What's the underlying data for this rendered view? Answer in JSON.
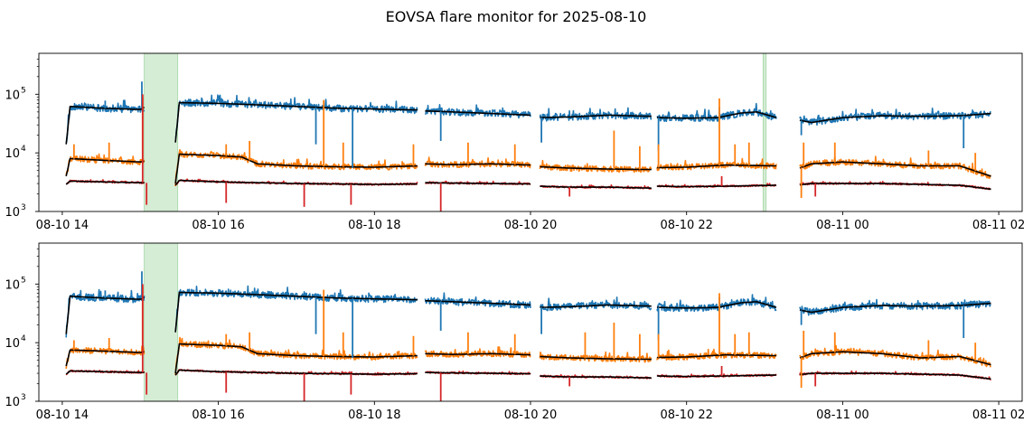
{
  "chart_data": {
    "type": "line",
    "title": "EOVSA flare monitor for 2025-08-10",
    "x_unit": "hours since 2025-08-10 00:00 UT",
    "xlim": [
      13.7,
      26.3
    ],
    "x_ticks": [
      {
        "value": 14,
        "label": "08-10 14"
      },
      {
        "value": 16,
        "label": "08-10 16"
      },
      {
        "value": 18,
        "label": "08-10 18"
      },
      {
        "value": 20,
        "label": "08-10 20"
      },
      {
        "value": 22,
        "label": "08-10 22"
      },
      {
        "value": 24,
        "label": "08-11 00"
      },
      {
        "value": 26,
        "label": "08-11 02"
      }
    ],
    "y_scale": "log",
    "ylim": [
      1000,
      500000
    ],
    "y_ticks": [
      {
        "value": 1000,
        "base": "10",
        "exp": "3"
      },
      {
        "value": 10000,
        "base": "10",
        "exp": "4"
      },
      {
        "value": 100000,
        "base": "10",
        "exp": "5"
      }
    ],
    "segments": [
      [
        14.05,
        15.05
      ],
      [
        15.45,
        18.55
      ],
      [
        18.65,
        20.0
      ],
      [
        20.12,
        21.55
      ],
      [
        21.62,
        23.15
      ],
      [
        23.45,
        25.9
      ]
    ],
    "colors": {
      "blue": "#1f77b4",
      "orange": "#ff7f0e",
      "red": "#d62728",
      "smooth": "#000000",
      "flare": "#2ca02c"
    },
    "panels": [
      {
        "name": "top",
        "flare_spans": [
          [
            15.05,
            15.48
          ],
          [
            22.98,
            23.02
          ]
        ],
        "series": [
          {
            "name": "blue",
            "color": "#1f77b4",
            "x": [
              14.05,
              14.1,
              14.5,
              15.0,
              15.05,
              15.45,
              15.5,
              16.0,
              16.5,
              17.0,
              17.5,
              18.0,
              18.55,
              18.65,
              19.0,
              19.5,
              20.0,
              20.12,
              20.5,
              21.0,
              21.55,
              21.62,
              22.0,
              22.4,
              22.7,
              22.9,
              23.15,
              23.45,
              23.6,
              24.0,
              24.5,
              25.0,
              25.5,
              25.9
            ],
            "values": [
              14000,
              62000,
              58000,
              55000,
              60000,
              15000,
              72000,
              70000,
              66000,
              62000,
              58000,
              56000,
              54000,
              52000,
              50000,
              47000,
              44000,
              40000,
              41000,
              44000,
              42000,
              40000,
              39000,
              40000,
              48000,
              50000,
              40000,
              36000,
              33000,
              40000,
              43000,
              42000,
              43000,
              47000
            ]
          },
          {
            "name": "orange",
            "color": "#ff7f0e",
            "x": [
              14.05,
              14.1,
              14.5,
              15.0,
              15.05,
              15.45,
              15.5,
              16.0,
              16.3,
              16.5,
              17.0,
              17.5,
              18.0,
              18.55,
              18.65,
              19.0,
              19.5,
              20.0,
              20.12,
              20.5,
              21.0,
              21.55,
              21.62,
              22.0,
              22.5,
              23.15,
              23.45,
              23.6,
              24.0,
              24.5,
              25.0,
              25.5,
              25.9
            ],
            "values": [
              4000,
              8000,
              7500,
              7000,
              7200,
              3000,
              9500,
              9000,
              8500,
              6500,
              6000,
              5800,
              5700,
              6000,
              6500,
              6300,
              6500,
              6200,
              5800,
              5500,
              5300,
              5200,
              5600,
              5700,
              6200,
              6000,
              5500,
              6500,
              7000,
              6500,
              6000,
              6000,
              4000
            ]
          },
          {
            "name": "red",
            "color": "#d62728",
            "x": [
              14.05,
              14.1,
              14.5,
              15.0,
              15.05,
              15.45,
              15.5,
              16.0,
              17.0,
              18.0,
              18.55,
              18.65,
              19.0,
              19.5,
              20.0,
              20.12,
              20.5,
              21.0,
              21.55,
              21.62,
              22.0,
              22.5,
              23.15,
              23.45,
              23.6,
              24.0,
              24.5,
              25.0,
              25.5,
              25.9
            ],
            "values": [
              2900,
              3300,
              3200,
              3100,
              3100,
              2800,
              3400,
              3200,
              3000,
              2900,
              2950,
              3100,
              3050,
              3000,
              2950,
              2700,
              2600,
              2600,
              2500,
              2700,
              2650,
              2700,
              2800,
              2850,
              3000,
              3000,
              3000,
              2900,
              2800,
              2400
            ]
          }
        ],
        "spikes": [
          {
            "series": "blue",
            "x": 14.55,
            "value": 78000
          },
          {
            "series": "blue",
            "x": 15.02,
            "value": 165000
          },
          {
            "series": "blue",
            "x": 17.25,
            "value": 14000
          },
          {
            "series": "blue",
            "x": 17.72,
            "value": 5500
          },
          {
            "series": "blue",
            "x": 18.85,
            "value": 16000
          },
          {
            "series": "blue",
            "x": 20.14,
            "value": 15000
          },
          {
            "series": "blue",
            "x": 21.64,
            "value": 11000
          },
          {
            "series": "blue",
            "x": 23.47,
            "value": 20000
          },
          {
            "series": "blue",
            "x": 25.55,
            "value": 12000
          },
          {
            "series": "blue",
            "x": 22.42,
            "value": 60000
          },
          {
            "series": "orange",
            "x": 14.15,
            "value": 14000
          },
          {
            "series": "orange",
            "x": 14.6,
            "value": 15000
          },
          {
            "series": "orange",
            "x": 15.03,
            "value": 90000
          },
          {
            "series": "orange",
            "x": 16.1,
            "value": 14000
          },
          {
            "series": "orange",
            "x": 16.4,
            "value": 16000
          },
          {
            "series": "orange",
            "x": 17.35,
            "value": 80000
          },
          {
            "series": "orange",
            "x": 17.6,
            "value": 15000
          },
          {
            "series": "orange",
            "x": 18.5,
            "value": 14000
          },
          {
            "series": "orange",
            "x": 19.2,
            "value": 15000
          },
          {
            "series": "orange",
            "x": 19.8,
            "value": 14000
          },
          {
            "series": "orange",
            "x": 21.07,
            "value": 24000
          },
          {
            "series": "orange",
            "x": 21.4,
            "value": 13000
          },
          {
            "series": "orange",
            "x": 21.64,
            "value": 14000
          },
          {
            "series": "orange",
            "x": 22.42,
            "value": 85000
          },
          {
            "series": "orange",
            "x": 22.62,
            "value": 14000
          },
          {
            "series": "orange",
            "x": 22.8,
            "value": 15000
          },
          {
            "series": "orange",
            "x": 23.5,
            "value": 15000
          },
          {
            "series": "orange",
            "x": 23.9,
            "value": 15000
          },
          {
            "series": "orange",
            "x": 25.1,
            "value": 11000
          },
          {
            "series": "orange",
            "x": 25.7,
            "value": 10000
          },
          {
            "series": "orange",
            "x": 23.47,
            "value": 1700
          },
          {
            "series": "red",
            "x": 15.03,
            "value": 100000
          },
          {
            "series": "red",
            "x": 15.08,
            "value": 1300
          },
          {
            "series": "red",
            "x": 16.1,
            "value": 1400
          },
          {
            "series": "red",
            "x": 17.1,
            "value": 1200
          },
          {
            "series": "red",
            "x": 17.7,
            "value": 1300
          },
          {
            "series": "red",
            "x": 18.85,
            "value": 1000
          },
          {
            "series": "red",
            "x": 20.5,
            "value": 1800
          },
          {
            "series": "red",
            "x": 23.65,
            "value": 1800
          },
          {
            "series": "red",
            "x": 22.45,
            "value": 4000
          }
        ]
      },
      {
        "name": "bottom",
        "flare_spans": [
          [
            15.05,
            15.48
          ]
        ],
        "series": [
          {
            "name": "blue",
            "color": "#1f77b4",
            "x": [
              14.05,
              14.1,
              14.5,
              15.0,
              15.05,
              15.45,
              15.5,
              16.0,
              16.5,
              17.0,
              17.5,
              18.0,
              18.55,
              18.65,
              19.0,
              19.5,
              20.0,
              20.12,
              20.5,
              21.0,
              21.55,
              21.62,
              22.0,
              22.4,
              22.7,
              22.9,
              23.15,
              23.45,
              23.6,
              24.0,
              24.5,
              25.0,
              25.5,
              25.9
            ],
            "values": [
              14000,
              62000,
              58000,
              55000,
              60000,
              15000,
              72000,
              70000,
              66000,
              62000,
              58000,
              56000,
              54000,
              52000,
              50000,
              47000,
              44000,
              40000,
              41000,
              44000,
              42000,
              40000,
              39000,
              40000,
              48000,
              50000,
              40000,
              36000,
              33000,
              40000,
              43000,
              42000,
              43000,
              47000
            ]
          },
          {
            "name": "orange",
            "color": "#ff7f0e",
            "x": [
              14.05,
              14.1,
              14.5,
              15.0,
              15.05,
              15.45,
              15.5,
              16.0,
              16.3,
              16.5,
              17.0,
              17.5,
              18.0,
              18.55,
              18.65,
              19.0,
              19.5,
              20.0,
              20.12,
              20.5,
              21.0,
              21.55,
              21.62,
              22.0,
              22.5,
              23.15,
              23.45,
              23.6,
              24.0,
              24.5,
              25.0,
              25.5,
              25.9
            ],
            "values": [
              4000,
              7500,
              7200,
              6800,
              7000,
              3000,
              9500,
              9000,
              8500,
              6500,
              6000,
              5800,
              5700,
              6000,
              6500,
              6300,
              6500,
              6200,
              5800,
              5500,
              5300,
              5200,
              5600,
              5700,
              6200,
              6000,
              5500,
              6500,
              7000,
              6500,
              5500,
              5800,
              4200
            ]
          },
          {
            "name": "red",
            "color": "#d62728",
            "x": [
              14.05,
              14.1,
              14.5,
              15.0,
              15.05,
              15.45,
              15.5,
              16.0,
              17.0,
              18.0,
              18.55,
              18.65,
              19.0,
              19.5,
              20.0,
              20.12,
              20.5,
              21.0,
              21.55,
              21.62,
              22.0,
              22.5,
              23.15,
              23.45,
              23.6,
              24.0,
              24.5,
              25.0,
              25.5,
              25.9
            ],
            "values": [
              2900,
              3300,
              3200,
              3100,
              3100,
              2800,
              3400,
              3200,
              3000,
              2900,
              2950,
              3100,
              3050,
              3000,
              2950,
              2700,
              2600,
              2600,
              2500,
              2700,
              2650,
              2700,
              2800,
              2850,
              3000,
              3000,
              3000,
              2900,
              2800,
              2400
            ]
          }
        ],
        "spikes": [
          {
            "series": "blue",
            "x": 14.55,
            "value": 78000
          },
          {
            "series": "blue",
            "x": 15.02,
            "value": 165000
          },
          {
            "series": "blue",
            "x": 17.25,
            "value": 14000
          },
          {
            "series": "blue",
            "x": 17.72,
            "value": 5500
          },
          {
            "series": "blue",
            "x": 18.85,
            "value": 16000
          },
          {
            "series": "blue",
            "x": 20.14,
            "value": 14000
          },
          {
            "series": "blue",
            "x": 21.64,
            "value": 11000
          },
          {
            "series": "blue",
            "x": 23.47,
            "value": 20000
          },
          {
            "series": "blue",
            "x": 25.55,
            "value": 12000
          },
          {
            "series": "blue",
            "x": 22.42,
            "value": 60000
          },
          {
            "series": "orange",
            "x": 14.15,
            "value": 11000
          },
          {
            "series": "orange",
            "x": 14.6,
            "value": 12000
          },
          {
            "series": "orange",
            "x": 15.03,
            "value": 90000
          },
          {
            "series": "orange",
            "x": 16.1,
            "value": 14000
          },
          {
            "series": "orange",
            "x": 16.4,
            "value": 15000
          },
          {
            "series": "orange",
            "x": 17.35,
            "value": 80000
          },
          {
            "series": "orange",
            "x": 17.6,
            "value": 15000
          },
          {
            "series": "orange",
            "x": 18.5,
            "value": 13000
          },
          {
            "series": "orange",
            "x": 19.2,
            "value": 15000
          },
          {
            "series": "orange",
            "x": 19.8,
            "value": 14000
          },
          {
            "series": "orange",
            "x": 20.7,
            "value": 15000
          },
          {
            "series": "orange",
            "x": 21.07,
            "value": 22000
          },
          {
            "series": "orange",
            "x": 21.4,
            "value": 14000
          },
          {
            "series": "orange",
            "x": 21.64,
            "value": 14000
          },
          {
            "series": "orange",
            "x": 22.42,
            "value": 70000
          },
          {
            "series": "orange",
            "x": 22.62,
            "value": 14000
          },
          {
            "series": "orange",
            "x": 22.8,
            "value": 15000
          },
          {
            "series": "orange",
            "x": 23.5,
            "value": 16000
          },
          {
            "series": "orange",
            "x": 23.9,
            "value": 15000
          },
          {
            "series": "orange",
            "x": 25.1,
            "value": 11000
          },
          {
            "series": "orange",
            "x": 25.7,
            "value": 10000
          },
          {
            "series": "orange",
            "x": 23.47,
            "value": 1700
          },
          {
            "series": "red",
            "x": 15.03,
            "value": 100000
          },
          {
            "series": "red",
            "x": 15.08,
            "value": 1300
          },
          {
            "series": "red",
            "x": 16.1,
            "value": 1400
          },
          {
            "series": "red",
            "x": 17.1,
            "value": 1000
          },
          {
            "series": "red",
            "x": 17.7,
            "value": 1300
          },
          {
            "series": "red",
            "x": 18.85,
            "value": 1000
          },
          {
            "series": "red",
            "x": 20.5,
            "value": 1800
          },
          {
            "series": "red",
            "x": 23.65,
            "value": 1800
          },
          {
            "series": "red",
            "x": 22.45,
            "value": 4000
          }
        ]
      }
    ]
  }
}
